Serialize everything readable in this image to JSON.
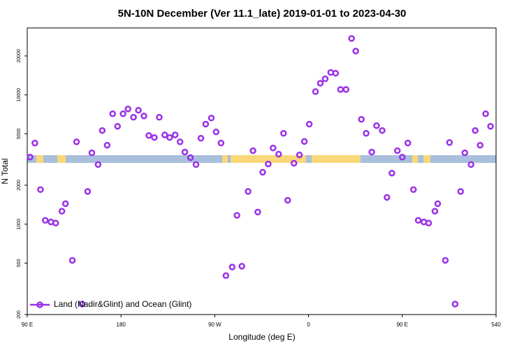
{
  "chart_data": {
    "type": "scatter",
    "title": "5N-10N December (Ver 11.1_late)   2019-01-01 to 2023-04-30",
    "x_label": "Longitude (deg E)",
    "y_label": "N Total",
    "log_y": true,
    "legend_position": "bottom-left",
    "xlim": [
      90,
      540
    ],
    "xticks": [
      {
        "value": 90,
        "label": "90 E"
      },
      180,
      {
        "value": 270,
        "label": "90 W"
      },
      {
        "value": 360,
        "label": "0"
      },
      {
        "value": 450,
        "label": "90 E"
      },
      540
    ],
    "ylim": [
      200,
      32900
    ],
    "yticks": [
      200,
      500,
      1000,
      2000,
      5000,
      10000,
      20000
    ],
    "series": [
      {
        "name": "Land (Nadir&Glint) and Ocean (Glint)",
        "color": "#9b30e8",
        "x": [
          92.7,
          97.3,
          102.7,
          107.3,
          112.7,
          117.3,
          123.3,
          126.7,
          133.3,
          137.3,
          142.7,
          148,
          152,
          158,
          162,
          166.7,
          172,
          176.7,
          182,
          186.7,
          192,
          196.7,
          202,
          206.7,
          212,
          216.7,
          222,
          226.7,
          232,
          236.7,
          241.3,
          246.7,
          252,
          256.7,
          261.3,
          266.7,
          271.3,
          276,
          280.7,
          286.7,
          291.3,
          296,
          302,
          306.7,
          311.3,
          316,
          321.3,
          326,
          331.3,
          336,
          340,
          346,
          351.3,
          356,
          360.7,
          366.7,
          371.3,
          376,
          381.3,
          386,
          390.7,
          396,
          401.3,
          405.3,
          410.7,
          415.3,
          420.7,
          425.3,
          430.7,
          435.3,
          440,
          445.3,
          450,
          455.3,
          460.7,
          465.3,
          470.7,
          475.3,
          481.3,
          484,
          491.3,
          495.3,
          500.7,
          506,
          510,
          516,
          520,
          524.7,
          530,
          534.7
        ],
        "values": [
          3300,
          4240,
          1850,
          1070,
          1040,
          1020,
          1260,
          1440,
          525,
          4330,
          241,
          1790,
          3560,
          2890,
          5300,
          4080,
          7140,
          5710,
          7140,
          7780,
          6710,
          7600,
          6870,
          4850,
          4680,
          6710,
          4900,
          4680,
          4900,
          4330,
          3610,
          3270,
          2890,
          4620,
          5930,
          6620,
          5170,
          4240,
          400,
          466,
          1170,
          473,
          1790,
          3700,
          1240,
          2520,
          2920,
          3880,
          3480,
          5040,
          1530,
          2960,
          3430,
          4360,
          5930,
          10600,
          12300,
          13300,
          14900,
          14700,
          11000,
          11000,
          27300,
          21800,
          6460,
          5040,
          3610,
          5780,
          5300,
          1610,
          2480,
          3700,
          3300,
          4240,
          1850,
          1070,
          1040,
          1020,
          1260,
          1440,
          525,
          4280,
          241,
          1790,
          3560,
          2890,
          5300,
          4080,
          7140,
          5710
        ]
      }
    ]
  }
}
